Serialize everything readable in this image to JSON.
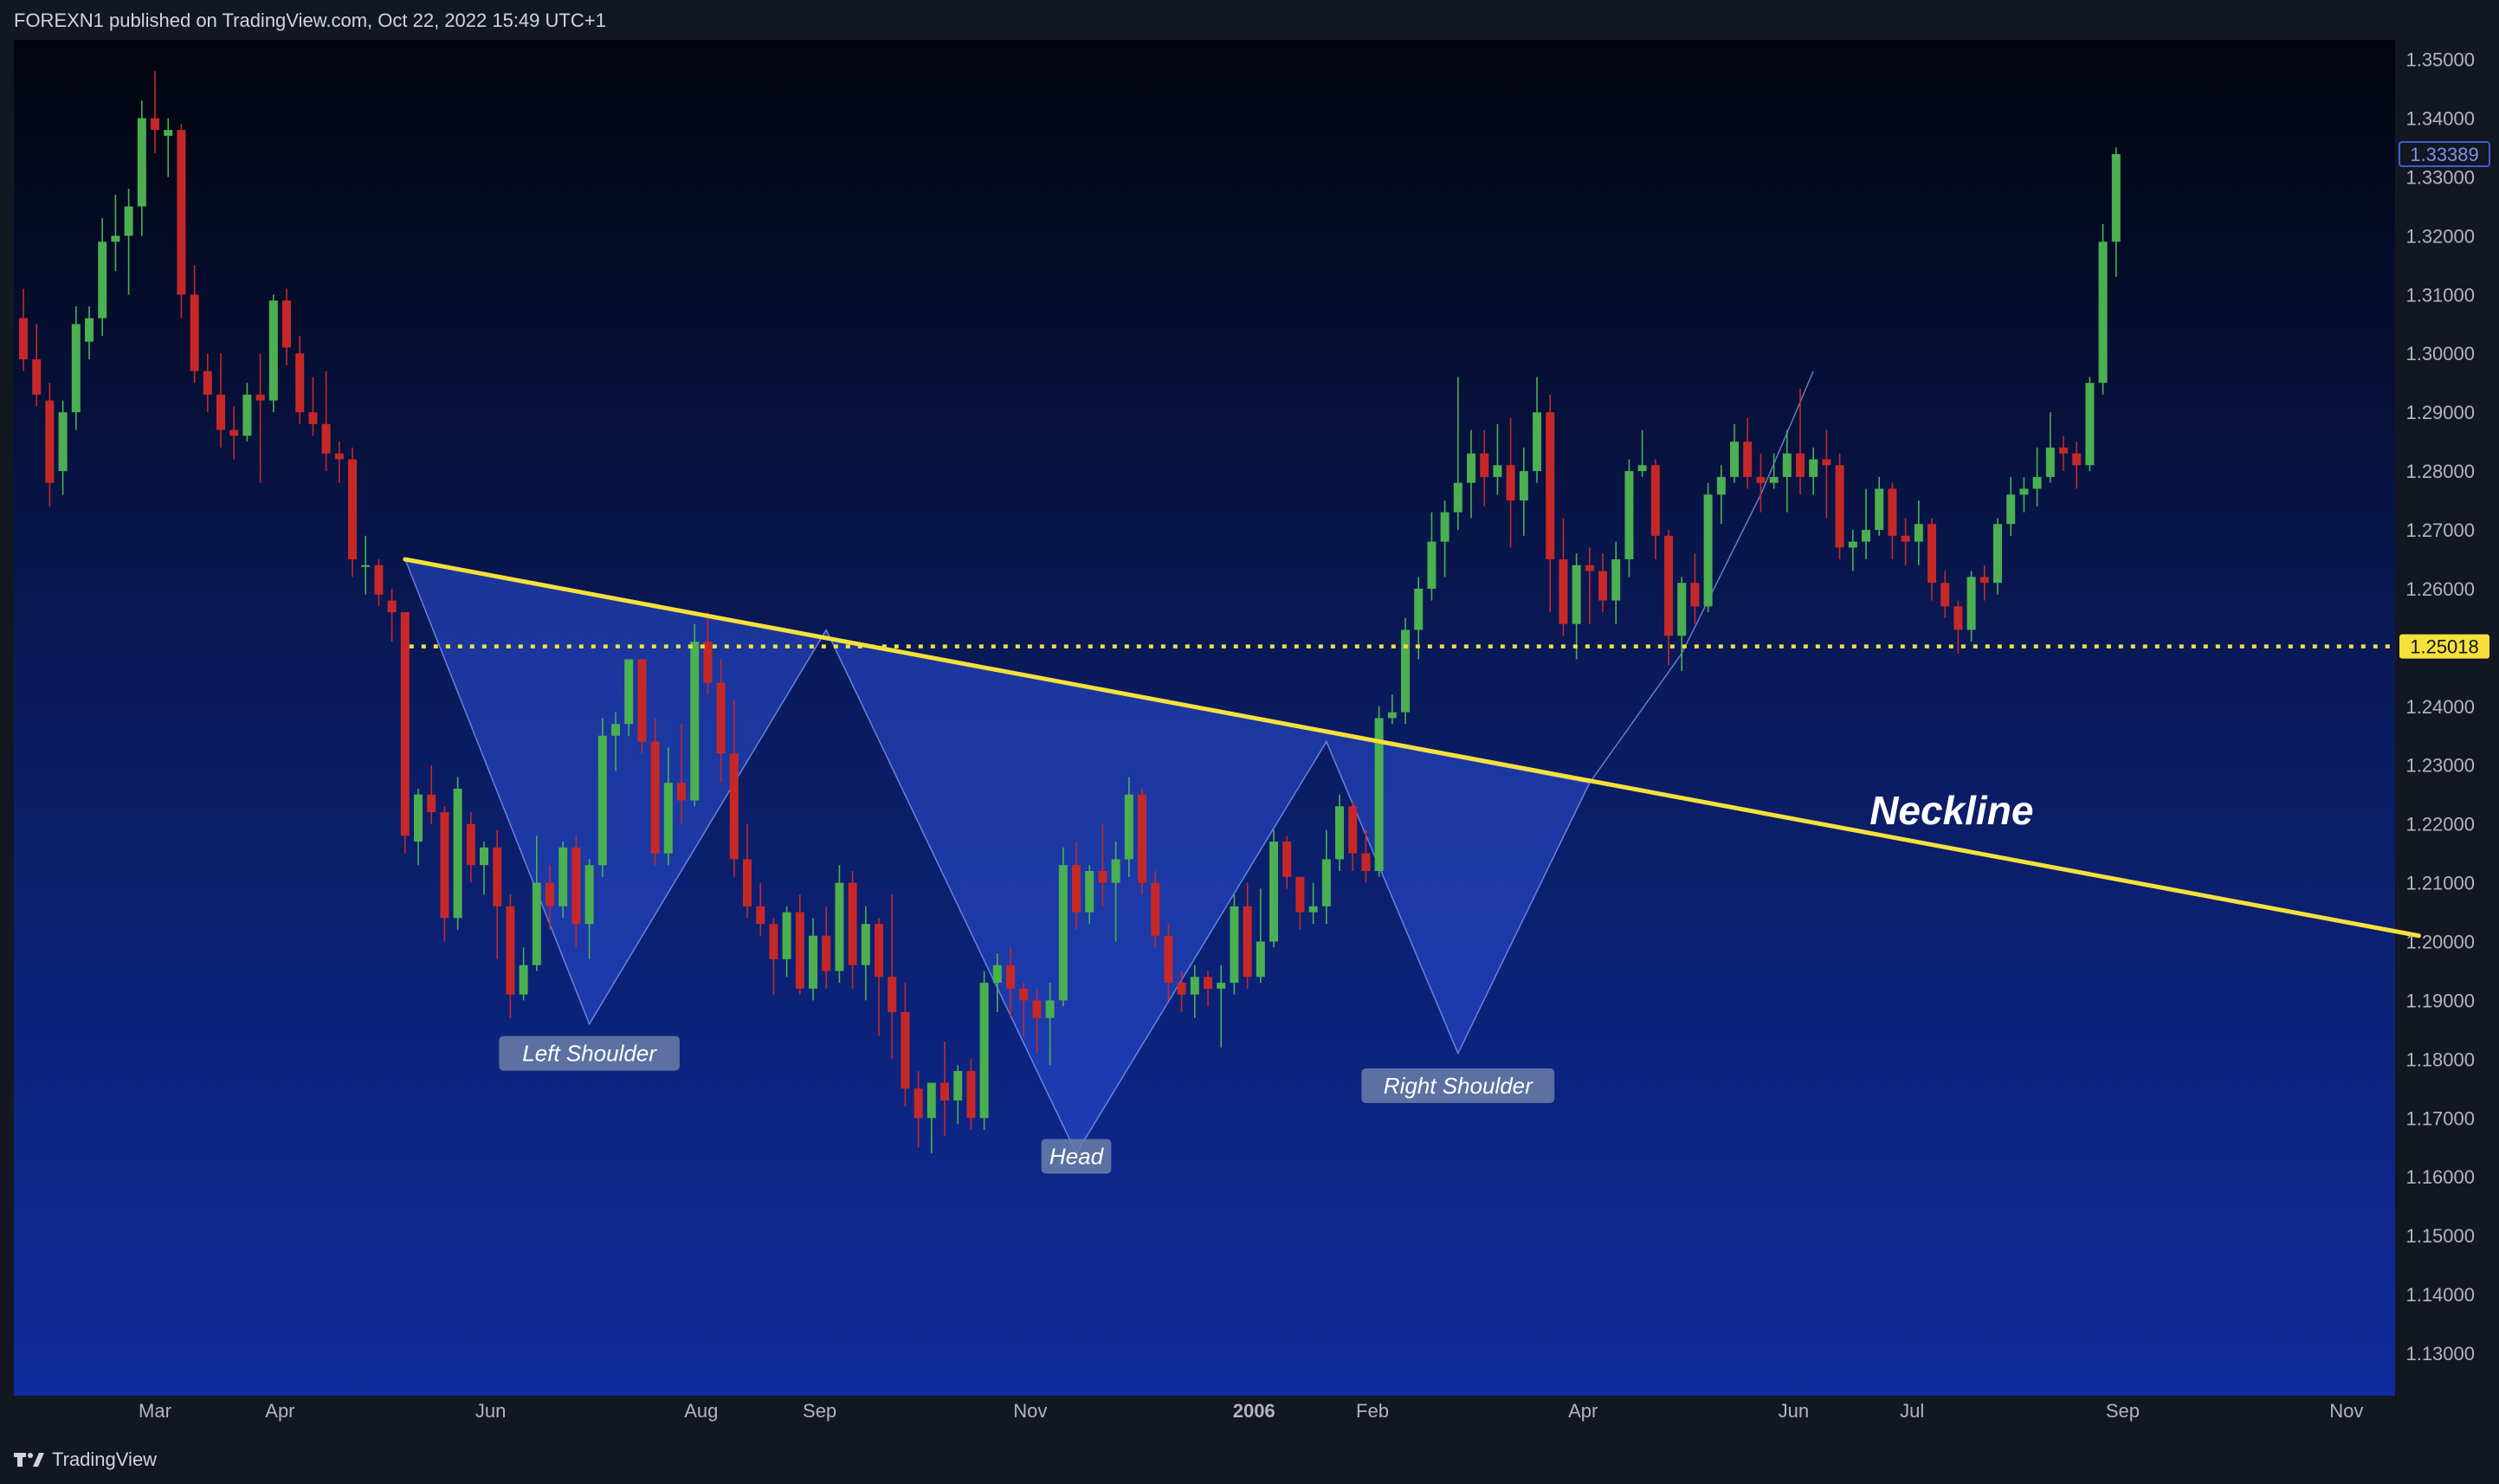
{
  "header": {
    "title": "FOREXN1 published on TradingView.com, Oct 22, 2022 15:49 UTC+1"
  },
  "footer": {
    "brand": "TradingView"
  },
  "colors": {
    "up": "#4caf50",
    "down": "#c62828",
    "neckline": "#f5e13c",
    "pattern_fill": "#2a4fd6",
    "label_bg": "#6b7fa8",
    "axis_text": "#b2b5be"
  },
  "chart_data": {
    "type": "candlestick",
    "timeframe": "weekly",
    "ylim": [
      1.125,
      1.352
    ],
    "y_ticks": [
      "1.35000",
      "1.34000",
      "1.33000",
      "1.32000",
      "1.31000",
      "1.30000",
      "1.29000",
      "1.28000",
      "1.27000",
      "1.26000",
      "1.25000",
      "1.24000",
      "1.23000",
      "1.22000",
      "1.21000",
      "1.20000",
      "1.19000",
      "1.18000",
      "1.17000",
      "1.16000",
      "1.15000",
      "1.14000",
      "1.13000"
    ],
    "x_ticks": [
      {
        "label": "Mar",
        "bar": 10
      },
      {
        "label": "Apr",
        "bar": 19.5
      },
      {
        "label": "Jun",
        "bar": 35.5
      },
      {
        "label": "Aug",
        "bar": 51.5
      },
      {
        "label": "Sep",
        "bar": 60.5
      },
      {
        "label": "Nov",
        "bar": 76.5
      },
      {
        "label": "2006",
        "bar": 93.5
      },
      {
        "label": "Feb",
        "bar": 102.5
      },
      {
        "label": "Apr",
        "bar": 118.5
      },
      {
        "label": "Jun",
        "bar": 134.5
      },
      {
        "label": "Jul",
        "bar": 143.5
      },
      {
        "label": "Sep",
        "bar": 159.5
      },
      {
        "label": "Nov",
        "bar": 176.5
      }
    ],
    "candles": [
      [
        1.306,
        1.311,
        1.297,
        1.299
      ],
      [
        1.299,
        1.305,
        1.291,
        1.293
      ],
      [
        1.292,
        1.295,
        1.274,
        1.278
      ],
      [
        1.28,
        1.292,
        1.276,
        1.29
      ],
      [
        1.29,
        1.308,
        1.287,
        1.305
      ],
      [
        1.302,
        1.308,
        1.299,
        1.306
      ],
      [
        1.306,
        1.323,
        1.303,
        1.319
      ],
      [
        1.319,
        1.327,
        1.314,
        1.32
      ],
      [
        1.32,
        1.328,
        1.31,
        1.325
      ],
      [
        1.325,
        1.343,
        1.32,
        1.34
      ],
      [
        1.34,
        1.348,
        1.334,
        1.338
      ],
      [
        1.337,
        1.34,
        1.33,
        1.338
      ],
      [
        1.338,
        1.339,
        1.306,
        1.31
      ],
      [
        1.31,
        1.315,
        1.295,
        1.297
      ],
      [
        1.297,
        1.3,
        1.29,
        1.293
      ],
      [
        1.293,
        1.3,
        1.284,
        1.287
      ],
      [
        1.287,
        1.291,
        1.282,
        1.286
      ],
      [
        1.286,
        1.295,
        1.285,
        1.293
      ],
      [
        1.293,
        1.3,
        1.278,
        1.292
      ],
      [
        1.292,
        1.31,
        1.29,
        1.309
      ],
      [
        1.309,
        1.311,
        1.298,
        1.301
      ],
      [
        1.3,
        1.303,
        1.288,
        1.29
      ],
      [
        1.29,
        1.296,
        1.286,
        1.288
      ],
      [
        1.288,
        1.297,
        1.28,
        1.283
      ],
      [
        1.283,
        1.285,
        1.278,
        1.282
      ],
      [
        1.282,
        1.284,
        1.262,
        1.265
      ],
      [
        1.264,
        1.269,
        1.259,
        1.264
      ],
      [
        1.264,
        1.265,
        1.257,
        1.259
      ],
      [
        1.258,
        1.26,
        1.251,
        1.256
      ],
      [
        1.256,
        1.256,
        1.215,
        1.218
      ],
      [
        1.217,
        1.226,
        1.213,
        1.225
      ],
      [
        1.225,
        1.23,
        1.22,
        1.222
      ],
      [
        1.222,
        1.223,
        1.2,
        1.204
      ],
      [
        1.204,
        1.228,
        1.202,
        1.226
      ],
      [
        1.22,
        1.222,
        1.21,
        1.213
      ],
      [
        1.213,
        1.217,
        1.208,
        1.216
      ],
      [
        1.216,
        1.219,
        1.197,
        1.206
      ],
      [
        1.206,
        1.208,
        1.187,
        1.191
      ],
      [
        1.191,
        1.199,
        1.19,
        1.196
      ],
      [
        1.196,
        1.218,
        1.195,
        1.21
      ],
      [
        1.21,
        1.213,
        1.202,
        1.206
      ],
      [
        1.206,
        1.217,
        1.204,
        1.216
      ],
      [
        1.216,
        1.218,
        1.199,
        1.203
      ],
      [
        1.203,
        1.214,
        1.197,
        1.213
      ],
      [
        1.213,
        1.238,
        1.211,
        1.235
      ],
      [
        1.235,
        1.239,
        1.229,
        1.237
      ],
      [
        1.237,
        1.248,
        1.235,
        1.248
      ],
      [
        1.248,
        1.248,
        1.232,
        1.234
      ],
      [
        1.234,
        1.238,
        1.213,
        1.215
      ],
      [
        1.215,
        1.233,
        1.213,
        1.227
      ],
      [
        1.227,
        1.237,
        1.22,
        1.224
      ],
      [
        1.224,
        1.254,
        1.223,
        1.251
      ],
      [
        1.251,
        1.256,
        1.242,
        1.244
      ],
      [
        1.244,
        1.248,
        1.227,
        1.232
      ],
      [
        1.232,
        1.241,
        1.211,
        1.214
      ],
      [
        1.214,
        1.22,
        1.204,
        1.206
      ],
      [
        1.206,
        1.21,
        1.201,
        1.203
      ],
      [
        1.203,
        1.204,
        1.191,
        1.197
      ],
      [
        1.197,
        1.206,
        1.194,
        1.205
      ],
      [
        1.205,
        1.208,
        1.191,
        1.192
      ],
      [
        1.192,
        1.204,
        1.19,
        1.201
      ],
      [
        1.201,
        1.206,
        1.192,
        1.195
      ],
      [
        1.195,
        1.213,
        1.193,
        1.21
      ],
      [
        1.21,
        1.212,
        1.192,
        1.196
      ],
      [
        1.196,
        1.206,
        1.19,
        1.203
      ],
      [
        1.203,
        1.204,
        1.184,
        1.194
      ],
      [
        1.194,
        1.208,
        1.18,
        1.188
      ],
      [
        1.188,
        1.193,
        1.172,
        1.175
      ],
      [
        1.175,
        1.178,
        1.165,
        1.17
      ],
      [
        1.17,
        1.176,
        1.164,
        1.176
      ],
      [
        1.176,
        1.183,
        1.167,
        1.173
      ],
      [
        1.173,
        1.179,
        1.169,
        1.178
      ],
      [
        1.178,
        1.18,
        1.168,
        1.17
      ],
      [
        1.17,
        1.195,
        1.168,
        1.193
      ],
      [
        1.193,
        1.198,
        1.188,
        1.196
      ],
      [
        1.196,
        1.199,
        1.187,
        1.192
      ],
      [
        1.192,
        1.193,
        1.184,
        1.19
      ],
      [
        1.19,
        1.192,
        1.181,
        1.187
      ],
      [
        1.187,
        1.193,
        1.179,
        1.19
      ],
      [
        1.19,
        1.216,
        1.189,
        1.213
      ],
      [
        1.213,
        1.217,
        1.202,
        1.205
      ],
      [
        1.205,
        1.213,
        1.203,
        1.212
      ],
      [
        1.212,
        1.22,
        1.206,
        1.21
      ],
      [
        1.21,
        1.217,
        1.2,
        1.214
      ],
      [
        1.214,
        1.228,
        1.211,
        1.225
      ],
      [
        1.225,
        1.226,
        1.208,
        1.21
      ],
      [
        1.21,
        1.212,
        1.199,
        1.201
      ],
      [
        1.201,
        1.203,
        1.19,
        1.193
      ],
      [
        1.193,
        1.195,
        1.188,
        1.191
      ],
      [
        1.191,
        1.196,
        1.187,
        1.194
      ],
      [
        1.194,
        1.195,
        1.189,
        1.192
      ],
      [
        1.192,
        1.196,
        1.182,
        1.193
      ],
      [
        1.193,
        1.208,
        1.191,
        1.206
      ],
      [
        1.206,
        1.21,
        1.192,
        1.194
      ],
      [
        1.194,
        1.209,
        1.193,
        1.2
      ],
      [
        1.2,
        1.219,
        1.199,
        1.217
      ],
      [
        1.217,
        1.218,
        1.209,
        1.211
      ],
      [
        1.211,
        1.211,
        1.202,
        1.205
      ],
      [
        1.205,
        1.21,
        1.203,
        1.206
      ],
      [
        1.206,
        1.219,
        1.203,
        1.214
      ],
      [
        1.214,
        1.225,
        1.212,
        1.223
      ],
      [
        1.223,
        1.224,
        1.212,
        1.215
      ],
      [
        1.215,
        1.219,
        1.21,
        1.212
      ],
      [
        1.212,
        1.24,
        1.211,
        1.238
      ],
      [
        1.238,
        1.242,
        1.237,
        1.239
      ],
      [
        1.239,
        1.255,
        1.237,
        1.253
      ],
      [
        1.253,
        1.262,
        1.248,
        1.26
      ],
      [
        1.26,
        1.273,
        1.258,
        1.268
      ],
      [
        1.268,
        1.275,
        1.262,
        1.273
      ],
      [
        1.273,
        1.296,
        1.27,
        1.278
      ],
      [
        1.278,
        1.287,
        1.272,
        1.283
      ],
      [
        1.283,
        1.287,
        1.274,
        1.279
      ],
      [
        1.279,
        1.288,
        1.276,
        1.281
      ],
      [
        1.281,
        1.289,
        1.267,
        1.275
      ],
      [
        1.275,
        1.284,
        1.269,
        1.28
      ],
      [
        1.28,
        1.296,
        1.278,
        1.29
      ],
      [
        1.29,
        1.293,
        1.256,
        1.265
      ],
      [
        1.265,
        1.272,
        1.252,
        1.254
      ],
      [
        1.254,
        1.266,
        1.248,
        1.264
      ],
      [
        1.264,
        1.267,
        1.254,
        1.263
      ],
      [
        1.263,
        1.266,
        1.256,
        1.258
      ],
      [
        1.258,
        1.268,
        1.254,
        1.265
      ],
      [
        1.265,
        1.282,
        1.262,
        1.28
      ],
      [
        1.28,
        1.287,
        1.279,
        1.281
      ],
      [
        1.281,
        1.282,
        1.265,
        1.269
      ],
      [
        1.269,
        1.27,
        1.247,
        1.252
      ],
      [
        1.252,
        1.262,
        1.246,
        1.261
      ],
      [
        1.261,
        1.266,
        1.254,
        1.257
      ],
      [
        1.257,
        1.278,
        1.256,
        1.276
      ],
      [
        1.276,
        1.281,
        1.271,
        1.279
      ],
      [
        1.279,
        1.288,
        1.278,
        1.285
      ],
      [
        1.285,
        1.289,
        1.277,
        1.279
      ],
      [
        1.279,
        1.283,
        1.273,
        1.278
      ],
      [
        1.278,
        1.283,
        1.277,
        1.279
      ],
      [
        1.279,
        1.287,
        1.273,
        1.283
      ],
      [
        1.283,
        1.294,
        1.276,
        1.279
      ],
      [
        1.279,
        1.284,
        1.276,
        1.282
      ],
      [
        1.282,
        1.287,
        1.272,
        1.281
      ],
      [
        1.281,
        1.283,
        1.265,
        1.267
      ],
      [
        1.267,
        1.27,
        1.263,
        1.268
      ],
      [
        1.268,
        1.277,
        1.265,
        1.27
      ],
      [
        1.27,
        1.279,
        1.269,
        1.277
      ],
      [
        1.277,
        1.278,
        1.265,
        1.269
      ],
      [
        1.269,
        1.272,
        1.264,
        1.268
      ],
      [
        1.268,
        1.275,
        1.264,
        1.271
      ],
      [
        1.271,
        1.272,
        1.258,
        1.261
      ],
      [
        1.261,
        1.263,
        1.255,
        1.257
      ],
      [
        1.257,
        1.258,
        1.249,
        1.253
      ],
      [
        1.253,
        1.263,
        1.251,
        1.262
      ],
      [
        1.262,
        1.264,
        1.258,
        1.261
      ],
      [
        1.261,
        1.272,
        1.259,
        1.271
      ],
      [
        1.271,
        1.279,
        1.269,
        1.276
      ],
      [
        1.276,
        1.279,
        1.273,
        1.277
      ],
      [
        1.277,
        1.284,
        1.274,
        1.279
      ],
      [
        1.279,
        1.29,
        1.278,
        1.284
      ],
      [
        1.284,
        1.286,
        1.28,
        1.283
      ],
      [
        1.283,
        1.285,
        1.277,
        1.281
      ],
      [
        1.281,
        1.296,
        1.28,
        1.295
      ],
      [
        1.295,
        1.322,
        1.293,
        1.319
      ],
      [
        1.319,
        1.335,
        1.313,
        1.3339
      ]
    ],
    "neckline": {
      "from": {
        "bar": 29,
        "price": 1.265
      },
      "to": {
        "bar": 182,
        "price": 1.201
      }
    },
    "horizontal_level": {
      "price": 1.25018,
      "label": "1.25018",
      "style": "dotted"
    },
    "last_price": {
      "price": 1.33389,
      "label": "1.33389"
    },
    "pattern_outline": [
      {
        "bar": 29,
        "price": 1.265
      },
      {
        "bar": 43,
        "price": 1.186
      },
      {
        "bar": 61,
        "price": 1.253
      },
      {
        "bar": 80,
        "price": 1.164
      },
      {
        "bar": 99,
        "price": 1.234
      },
      {
        "bar": 109,
        "price": 1.181
      },
      {
        "bar": 119,
        "price": 1.227
      }
    ],
    "breakout_line": [
      {
        "bar": 119,
        "price": 1.227
      },
      {
        "bar": 126,
        "price": 1.249
      },
      {
        "bar": 132,
        "price": 1.276
      },
      {
        "bar": 136,
        "price": 1.297
      }
    ],
    "annotations": [
      {
        "text": "Left Shoulder",
        "bar": 43,
        "price": 1.181
      },
      {
        "text": "Head",
        "bar": 80,
        "price": 1.1635
      },
      {
        "text": "Right Shoulder",
        "bar": 109,
        "price": 1.1755
      },
      {
        "text": "Neckline",
        "bar": 146.5,
        "price": 1.2223,
        "style": "large"
      }
    ]
  }
}
